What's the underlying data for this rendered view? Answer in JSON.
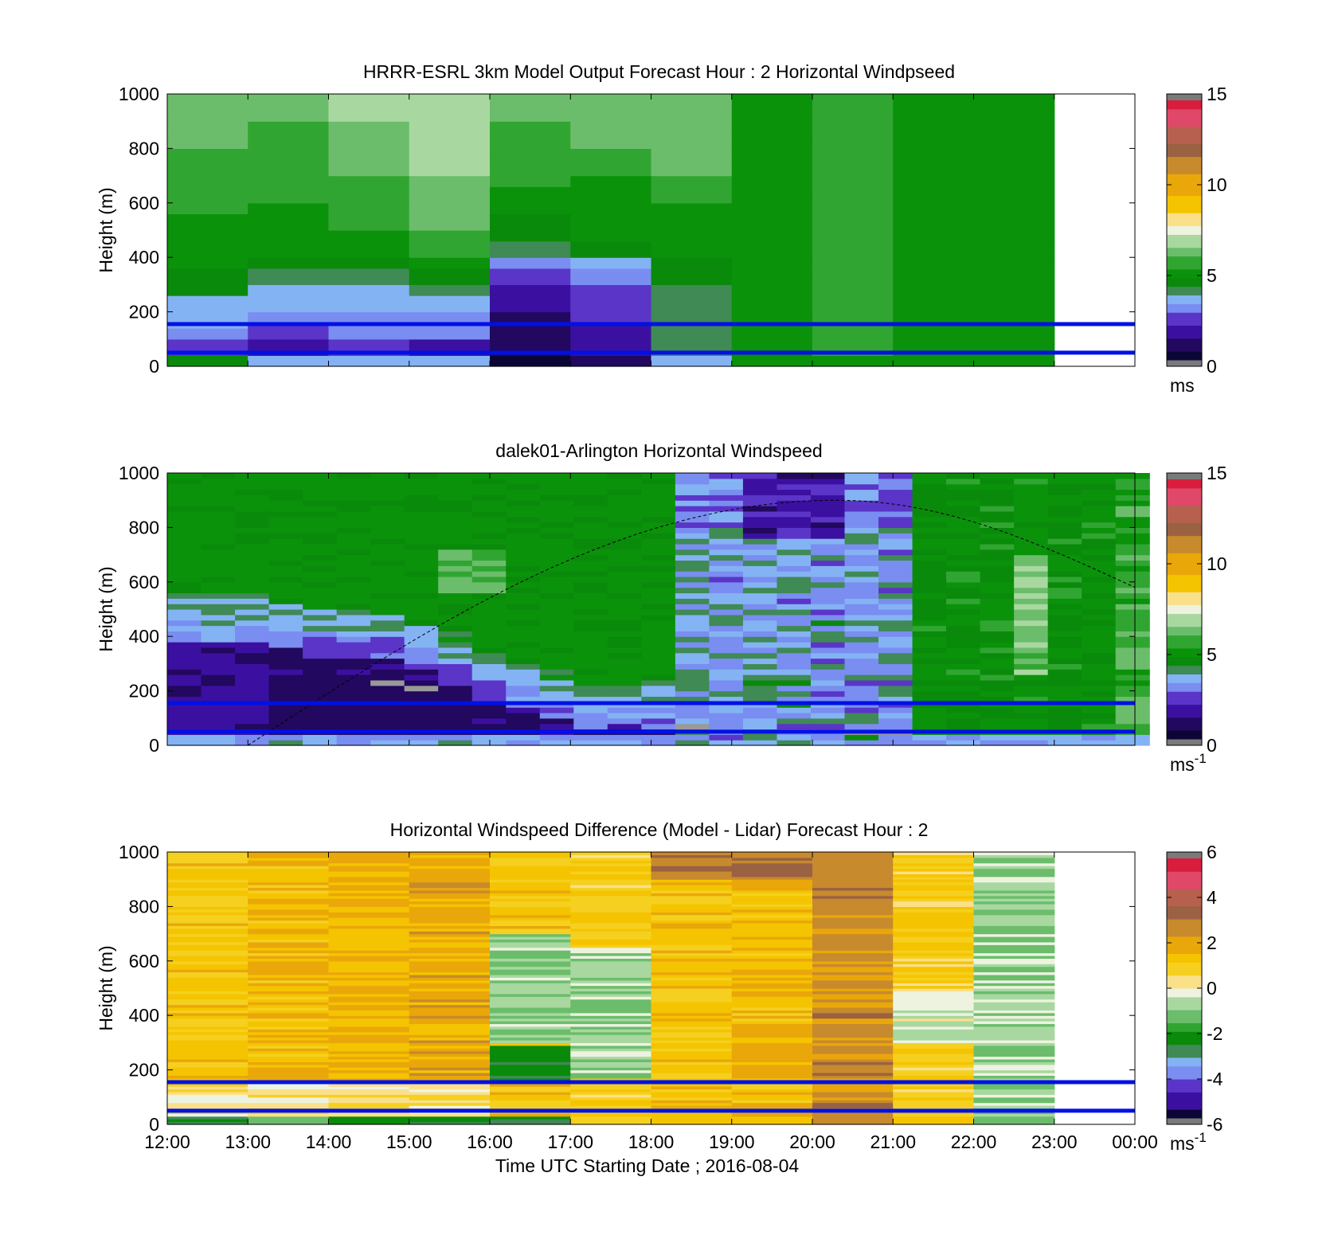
{
  "chart_data": [
    {
      "type": "heatmap",
      "id": "model",
      "title": "HRRR-ESRL 3km Model Output   Forecast Hour : 2 Horizontal Windpseed",
      "ylabel": "Height (m)",
      "xlabel": "",
      "x_ticks": [
        "12:00",
        "13:00",
        "14:00",
        "15:00",
        "16:00",
        "17:00",
        "18:00",
        "19:00",
        "20:00",
        "21:00",
        "22:00",
        "23:00",
        "00:00"
      ],
      "y_ticks": [
        0,
        200,
        400,
        600,
        800,
        1000
      ],
      "ylim": [
        0,
        1000
      ],
      "xlim_hours": [
        12,
        24
      ],
      "show_x_tick_labels": false,
      "resolution": "hourly columns, coarse model levels",
      "data_end_hour": 23,
      "colorbar": {
        "ticks": [
          0,
          5,
          10,
          15
        ],
        "range": [
          0,
          15
        ],
        "unit": "ms",
        "unit_sup": ""
      },
      "reference_heights_m": [
        50,
        155
      ],
      "reference_line_color": "#0010e6",
      "missing_color": "#9a9a9a"
    },
    {
      "type": "heatmap",
      "id": "lidar",
      "title": "dalek01-Arlington  Horizontal Windspeed",
      "ylabel": "Height (m)",
      "xlabel": "",
      "x_ticks": [
        "12:00",
        "13:00",
        "14:00",
        "15:00",
        "16:00",
        "17:00",
        "18:00",
        "19:00",
        "20:00",
        "21:00",
        "22:00",
        "23:00",
        "00:00"
      ],
      "y_ticks": [
        0,
        200,
        400,
        600,
        800,
        1000
      ],
      "ylim": [
        0,
        1000
      ],
      "xlim_hours": [
        12,
        24
      ],
      "show_x_tick_labels": false,
      "resolution": "~25-minute columns, ~20 m gates",
      "data_end_hour": 23.85,
      "colorbar": {
        "ticks": [
          0,
          5,
          10,
          15
        ],
        "range": [
          0,
          15
        ],
        "unit": "ms",
        "unit_sup": "-1"
      },
      "reference_heights_m": [
        50,
        155
      ],
      "reference_line_color": "#0010e6",
      "boundary_layer_curve": {
        "style": "dashed",
        "color": "#000000",
        "start": [
          13,
          0
        ],
        "peak": [
          20.3,
          900
        ],
        "end": [
          24,
          580
        ]
      },
      "missing_color": "#9a9a9a"
    },
    {
      "type": "heatmap",
      "id": "difference",
      "title": "Horizontal Windspeed Difference (Model - Lidar) Forecast Hour : 2",
      "ylabel": "Height (m)",
      "xlabel": "Time UTC  Starting Date ; 2016-08-04",
      "x_ticks": [
        "12:00",
        "13:00",
        "14:00",
        "15:00",
        "16:00",
        "17:00",
        "18:00",
        "19:00",
        "20:00",
        "21:00",
        "22:00",
        "23:00",
        "00:00"
      ],
      "y_ticks": [
        0,
        200,
        400,
        600,
        800,
        1000
      ],
      "ylim": [
        0,
        1000
      ],
      "xlim_hours": [
        12,
        24
      ],
      "show_x_tick_labels": true,
      "resolution": "hourly columns, fine height bins",
      "data_end_hour": 23,
      "colorbar": {
        "ticks": [
          -6,
          -4,
          -2,
          0,
          2,
          4,
          6
        ],
        "range": [
          -6,
          6
        ],
        "unit": "ms",
        "unit_sup": "-1"
      },
      "reference_heights_m": [
        50,
        155
      ],
      "reference_line_color": "#0010e6",
      "missing_color": "#9a9a9a"
    }
  ],
  "colormap": [
    "#2a2a2a",
    "#0b0636",
    "#22085e",
    "#3b10a0",
    "#5a35c8",
    "#7a8df0",
    "#84b3f4",
    "#3f8a55",
    "#0a8a0a",
    "#31a531",
    "#6bbd6b",
    "#a8d8a0",
    "#eef3e0",
    "#fbe08a",
    "#f5c400",
    "#e9a70a",
    "#c78a2c",
    "#9a6242",
    "#b8604f",
    "#e0486a",
    "#d81e3c",
    "#7a7a7a"
  ]
}
